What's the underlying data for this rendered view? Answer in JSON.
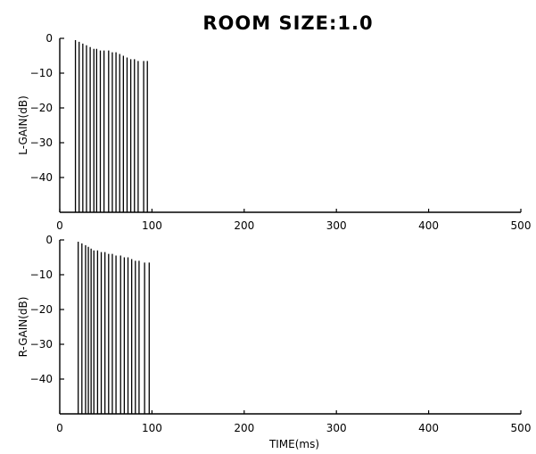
{
  "chart_data": {
    "type": "bar",
    "title": "ROOM SIZE:1.0",
    "xlabel": "TIME(ms)",
    "xlim": [
      0,
      500
    ],
    "ylim": [
      -50,
      0
    ],
    "xticks": [
      "0",
      "100",
      "200",
      "300",
      "400",
      "500"
    ],
    "yticks": [
      "0",
      "−10",
      "−20",
      "−30",
      "−40"
    ],
    "panels": [
      {
        "ylabel": "L-GAIN(dB)",
        "series": [
          {
            "x": [
              17,
              21,
              25,
              29,
              33,
              37,
              40,
              44,
              48,
              53,
              57,
              61,
              65,
              69,
              73,
              77,
              81,
              85,
              91,
              95
            ],
            "values": [
              -0.5,
              -1.0,
              -1.5,
              -2.0,
              -2.5,
              -3.0,
              -3.0,
              -3.5,
              -3.5,
              -3.5,
              -4.0,
              -4.0,
              -4.5,
              -5.0,
              -5.5,
              -6.0,
              -6.0,
              -6.5,
              -6.5,
              -6.5
            ]
          }
        ]
      },
      {
        "ylabel": "R-GAIN(dB)",
        "series": [
          {
            "x": [
              20,
              24,
              28,
              31,
              34,
              37,
              41,
              45,
              49,
              53,
              57,
              61,
              66,
              70,
              74,
              78,
              82,
              86,
              92,
              97
            ],
            "values": [
              -0.5,
              -1.0,
              -1.5,
              -2.0,
              -2.5,
              -3.0,
              -3.0,
              -3.5,
              -3.5,
              -4.0,
              -4.0,
              -4.5,
              -4.5,
              -5.0,
              -5.0,
              -5.5,
              -6.0,
              -6.0,
              -6.5,
              -6.5
            ]
          }
        ]
      }
    ]
  }
}
